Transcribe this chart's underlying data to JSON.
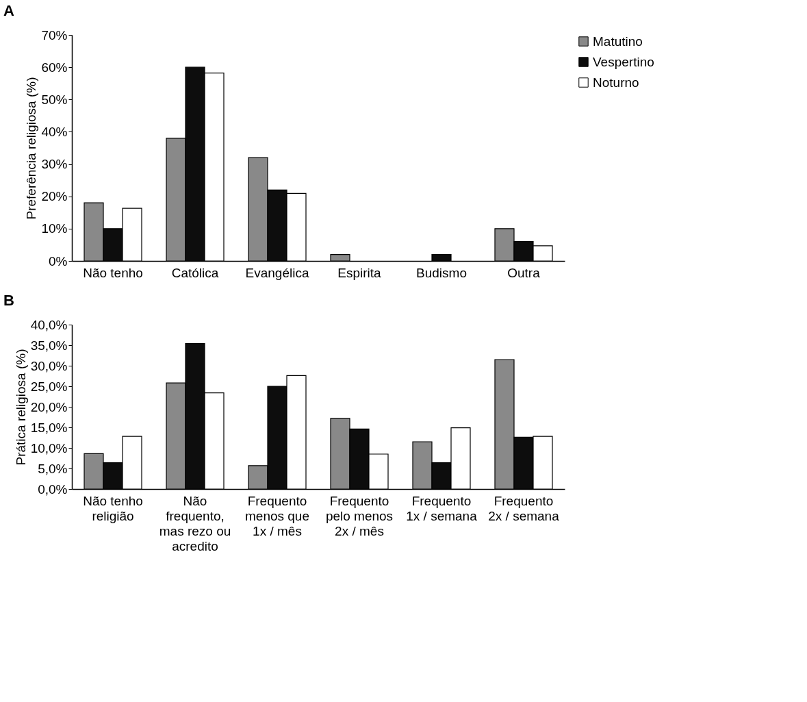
{
  "chart_data": [
    {
      "type": "bar",
      "title": "A",
      "ylabel": "Preferência religiosa (%)",
      "categories": [
        "Não tenho",
        "Católica",
        "Evangélica",
        "Espirita",
        "Budismo",
        "Outra"
      ],
      "series": [
        {
          "name": "Matutino",
          "color": "#898989",
          "values": [
            18,
            38,
            32,
            2,
            0,
            10
          ]
        },
        {
          "name": "Vespertino",
          "color": "#0d0d0d",
          "values": [
            10,
            60,
            22,
            0,
            2,
            6
          ]
        },
        {
          "name": "Noturno",
          "color": "#ffffff",
          "values": [
            16.3,
            58.2,
            20.9,
            0,
            0,
            4.7
          ]
        }
      ],
      "ylim": [
        0,
        70
      ],
      "yticks": [
        {
          "value": 0,
          "label": "0%"
        },
        {
          "value": 10,
          "label": "10%"
        },
        {
          "value": 20,
          "label": "20%"
        },
        {
          "value": 30,
          "label": "30%"
        },
        {
          "value": 40,
          "label": "40%"
        },
        {
          "value": 50,
          "label": "50%"
        },
        {
          "value": 60,
          "label": "60%"
        },
        {
          "value": 70,
          "label": "70%"
        }
      ],
      "grid": false,
      "legend": "right"
    },
    {
      "type": "bar",
      "title": "B",
      "ylabel": "Prática religiosa (%)",
      "categories": [
        "Não tenho religião",
        "Não frequento, mas rezo ou acredito",
        "Frequento menos que 1x / mês",
        "Frequento pelo menos 2x / mês",
        "Frequento 1x / semana",
        "Frequento 2x / semana"
      ],
      "series": [
        {
          "name": "Matutino",
          "color": "#898989",
          "values": [
            8.6,
            25.8,
            5.7,
            17.2,
            11.5,
            31.5
          ]
        },
        {
          "name": "Vespertino",
          "color": "#0d0d0d",
          "values": [
            6.4,
            35.4,
            25.0,
            14.6,
            6.4,
            12.6
          ]
        },
        {
          "name": "Noturno",
          "color": "#ffffff",
          "values": [
            12.8,
            23.4,
            27.6,
            8.5,
            14.9,
            12.8
          ]
        }
      ],
      "ylim": [
        0,
        40
      ],
      "yticks": [
        {
          "value": 0,
          "label": "0,0%"
        },
        {
          "value": 5,
          "label": "5,0%"
        },
        {
          "value": 10,
          "label": "10,0%"
        },
        {
          "value": 15,
          "label": "15,0%"
        },
        {
          "value": 20,
          "label": "20,0%"
        },
        {
          "value": 25,
          "label": "25,0%"
        },
        {
          "value": 30,
          "label": "30,0%"
        },
        {
          "value": 35,
          "label": "35,0%"
        },
        {
          "value": 40,
          "label": "40,0%"
        }
      ],
      "grid": false,
      "legend": "right"
    }
  ]
}
